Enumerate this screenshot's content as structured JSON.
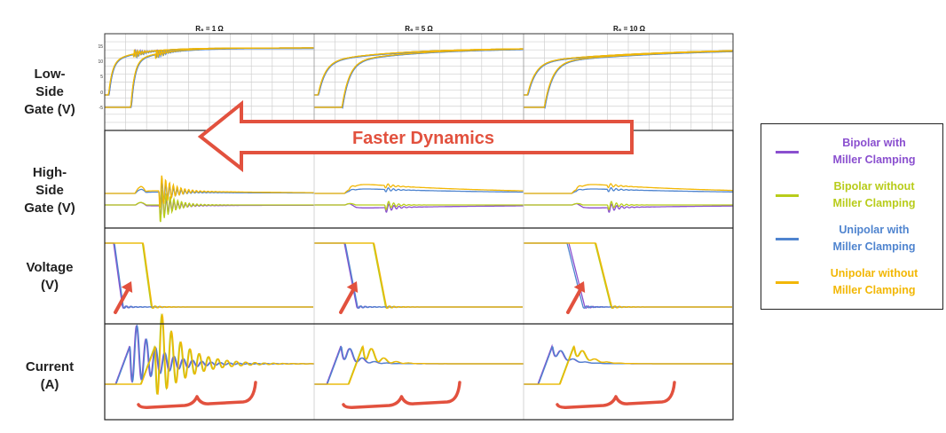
{
  "figure": {
    "column_titles": [
      "R₆ = 1 Ω",
      "R₆ = 5 Ω",
      "R₆ = 10 Ω"
    ],
    "row_labels": [
      [
        "Low-",
        "Side",
        "Gate (V)"
      ],
      [
        "High-",
        "Side",
        "Gate (V)"
      ],
      [
        "Voltage",
        "(V)"
      ],
      [
        "Current",
        "(A)"
      ]
    ],
    "annotation": "Faster Dynamics",
    "accent_color": "#e2513e"
  },
  "legend": {
    "items": [
      {
        "line1": "Bipolar with",
        "line2": "Miller Clamping",
        "color": "#8a4fcf"
      },
      {
        "line1": "Bipolar without",
        "line2": "Miller Clamping",
        "color": "#b8cc1a"
      },
      {
        "line1": "Unipolar with",
        "line2": "Miller Clamping",
        "color": "#4f84cf"
      },
      {
        "line1": "Unipolar without",
        "line2": "Miller Clamping",
        "color": "#f2b705"
      }
    ]
  },
  "chart_data": {
    "type": "line",
    "columns": [
      "R₆ = 1 Ω",
      "R₆ = 5 Ω",
      "R₆ = 10 Ω"
    ],
    "rows": [
      "Low-Side Gate (V)",
      "High-Side Gate (V)",
      "Voltage (V)",
      "Current (A)"
    ],
    "series": [
      {
        "name": "Bipolar with Miller Clamping",
        "color": "#8a4fcf"
      },
      {
        "name": "Bipolar without Miller Clamping",
        "color": "#b8cc1a"
      },
      {
        "name": "Unipolar with Miller Clamping",
        "color": "#4f84cf"
      },
      {
        "name": "Unipolar without Miller Clamping",
        "color": "#f2b705"
      }
    ],
    "low_side_gate_yticks": [
      "15",
      "10",
      "5",
      "0",
      "-5"
    ],
    "low_side_gate_ylim": [
      -8,
      17
    ],
    "grid": true
  }
}
